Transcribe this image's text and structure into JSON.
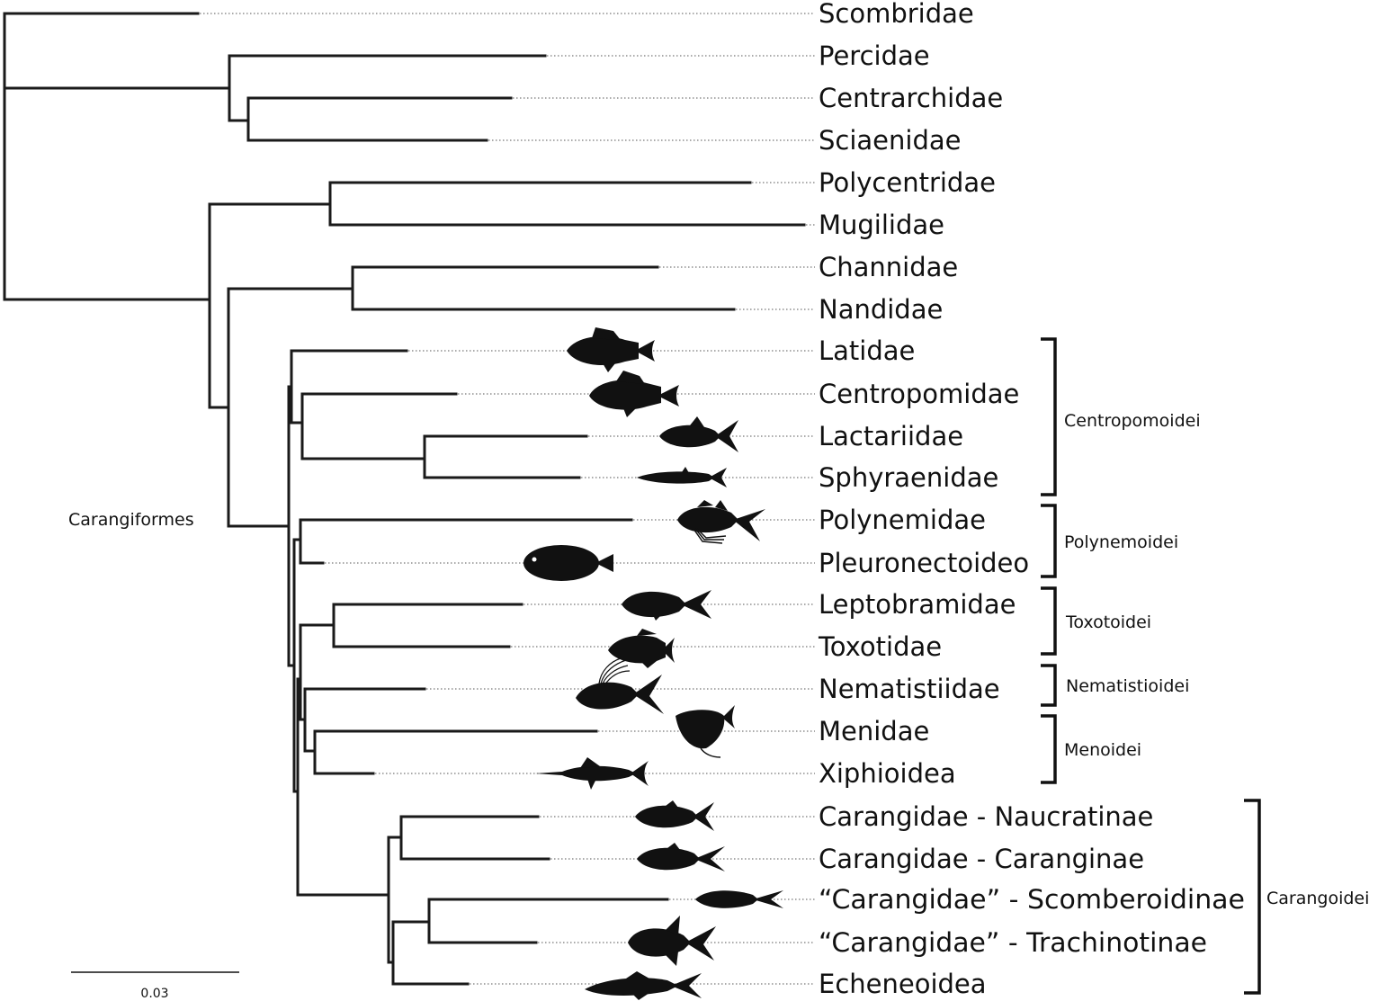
{
  "taxa": [
    "Scombridae",
    "Percidae",
    "Centrarchidae",
    "Sciaenidae",
    "Polycentridae",
    "Mugilidae",
    "Channidae",
    "Nandidae",
    "Latidae",
    "Centropomidae",
    "Lactariidae",
    "Sphyraenidae",
    "Polynemidae",
    "Pleuronectoideo",
    "Leptobramidae",
    "Toxotidae",
    "Nematistiidae",
    "Menidae",
    "Xiphioidea",
    "Carangidae - Naucratinae",
    "Carangidae - Caranginae",
    "“Carangidae” - Scomberoidinae",
    "“Carangidae” - Trachinotinae",
    "Echeneoidea"
  ],
  "order_label": "Carangiformes",
  "groups": [
    "Centropomoidei",
    "Polynemoidei",
    "Toxotoidei",
    "Nematistioidei",
    "Menoidei",
    "Carangoidei"
  ],
  "scale_bar": {
    "label": "0.03"
  },
  "icons": [
    "latidae-fish-icon",
    "centropomidae-fish-icon",
    "lactariidae-fish-icon",
    "sphyraenidae-fish-icon",
    "polynemidae-fish-icon",
    "flatfish-icon",
    "leptobramidae-fish-icon",
    "toxotidae-fish-icon",
    "nematistiidae-fish-icon",
    "menidae-fish-icon",
    "swordfish-icon",
    "naucratinae-fish-icon",
    "caranginae-fish-icon",
    "scomberoidinae-fish-icon",
    "trachinotinae-fish-icon",
    "echeneoidea-fish-icon"
  ]
}
